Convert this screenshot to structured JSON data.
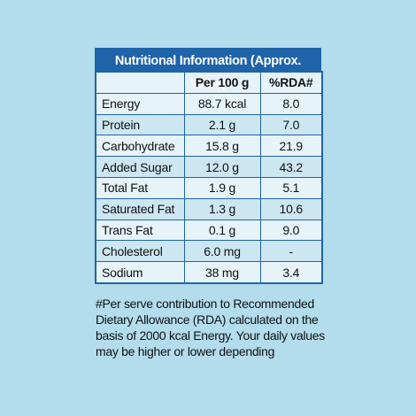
{
  "title": "Nutritional Information (Approx. Value)",
  "columns": [
    "",
    "Per 100 g",
    "%RDA#"
  ],
  "rows": [
    {
      "name": "Energy",
      "per100": "88.7 kcal",
      "rda": "8.0"
    },
    {
      "name": "Protein",
      "per100": "2.1 g",
      "rda": "7.0"
    },
    {
      "name": "Carbohydrate",
      "per100": "15.8 g",
      "rda": "21.9"
    },
    {
      "name": "Added Sugar",
      "per100": "12.0 g",
      "rda": "43.2"
    },
    {
      "name": "Total Fat",
      "per100": "1.9 g",
      "rda": "5.1"
    },
    {
      "name": "Saturated Fat",
      "per100": "1.3 g",
      "rda": "10.6"
    },
    {
      "name": "Trans Fat",
      "per100": "0.1 g",
      "rda": "9.0"
    },
    {
      "name": "Cholesterol",
      "per100": "6.0 mg",
      "rda": "-"
    },
    {
      "name": "Sodium",
      "per100": "38 mg",
      "rda": "3.4"
    }
  ],
  "footnote": "#Per serve contribution to Recommended Dietary Allowance (RDA) calculated on the basis of 2000 kcal Energy. Your daily values may be higher or lower depending",
  "colors": {
    "background": "#b3dcec",
    "header": "#1f64a8",
    "row_light": "#e6f3f9",
    "row_dark": "#cce7f2"
  }
}
